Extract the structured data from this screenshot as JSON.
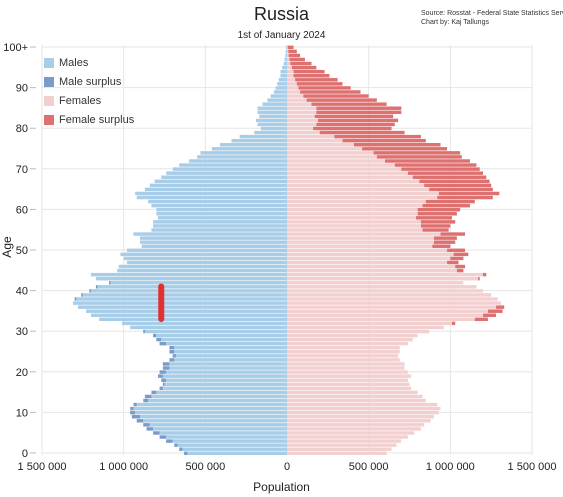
{
  "chart_data": {
    "type": "bar",
    "orientation": "horizontal-pyramid",
    "title": "Russia",
    "subtitle": "1st of January 2024",
    "source_line1": "Source: Rosstat - Federal State Statistics Servi",
    "source_line2": "Chart by: Kaj Tallungs",
    "xlabel": "Population",
    "ylabel": "Age",
    "xlim": [
      -1500000,
      1500000
    ],
    "x_ticks": [
      -1500000,
      -1000000,
      -500000,
      0,
      500000,
      1000000,
      1500000
    ],
    "x_tick_labels": [
      "1 500 000",
      "1 000 000",
      "500 000",
      "0",
      "500 000",
      "1 000 000",
      "1 500 000"
    ],
    "y_ticks": [
      0,
      10,
      20,
      30,
      40,
      50,
      60,
      70,
      80,
      90,
      100
    ],
    "y_tick_labels": [
      "0",
      "10",
      "20",
      "30",
      "40",
      "50",
      "60",
      "70",
      "80",
      "90",
      "100+"
    ],
    "grid": true,
    "legend_position": "top-left",
    "colors": {
      "males": "#a8cde8",
      "male_surplus": "#7a9cc8",
      "females": "#f3d0d0",
      "female_surplus": "#de7070",
      "marker": "#e03030"
    },
    "series": [
      {
        "name": "Males",
        "color": "#a8cde8"
      },
      {
        "name": "Male surplus",
        "color": "#7a9cc8"
      },
      {
        "name": "Females",
        "color": "#f3d0d0"
      },
      {
        "name": "Female surplus",
        "color": "#de7070"
      }
    ],
    "ages": [
      0,
      1,
      2,
      3,
      4,
      5,
      6,
      7,
      8,
      9,
      10,
      11,
      12,
      13,
      14,
      15,
      16,
      17,
      18,
      19,
      20,
      21,
      22,
      23,
      24,
      25,
      26,
      27,
      28,
      29,
      30,
      31,
      32,
      33,
      34,
      35,
      36,
      37,
      38,
      39,
      40,
      41,
      42,
      43,
      44,
      45,
      46,
      47,
      48,
      49,
      50,
      51,
      52,
      53,
      54,
      55,
      56,
      57,
      58,
      59,
      60,
      61,
      62,
      63,
      64,
      65,
      66,
      67,
      68,
      69,
      70,
      71,
      72,
      73,
      74,
      75,
      76,
      77,
      78,
      79,
      80,
      81,
      82,
      83,
      84,
      85,
      86,
      87,
      88,
      89,
      90,
      91,
      92,
      93,
      94,
      95,
      96,
      97,
      98,
      99,
      100
    ],
    "males": [
      630000,
      660000,
      690000,
      740000,
      780000,
      820000,
      860000,
      880000,
      920000,
      950000,
      960000,
      960000,
      940000,
      880000,
      870000,
      830000,
      780000,
      760000,
      770000,
      790000,
      780000,
      760000,
      760000,
      720000,
      700000,
      720000,
      720000,
      780000,
      800000,
      820000,
      880000,
      960000,
      1010000,
      1150000,
      1200000,
      1230000,
      1280000,
      1310000,
      1300000,
      1260000,
      1210000,
      1170000,
      1090000,
      1170000,
      1200000,
      1040000,
      1030000,
      980000,
      1000000,
      1020000,
      980000,
      890000,
      900000,
      900000,
      940000,
      830000,
      820000,
      820000,
      790000,
      800000,
      800000,
      830000,
      850000,
      920000,
      930000,
      870000,
      840000,
      810000,
      770000,
      740000,
      700000,
      660000,
      600000,
      550000,
      530000,
      460000,
      410000,
      340000,
      290000,
      200000,
      160000,
      180000,
      190000,
      170000,
      180000,
      180000,
      150000,
      120000,
      100000,
      80000,
      70000,
      60000,
      50000,
      40000,
      40000,
      30000,
      20000,
      15000,
      10000,
      8000,
      5000
    ],
    "females": [
      610000,
      640000,
      670000,
      700000,
      740000,
      780000,
      820000,
      840000,
      880000,
      900000,
      930000,
      940000,
      920000,
      850000,
      830000,
      800000,
      760000,
      750000,
      740000,
      760000,
      740000,
      720000,
      720000,
      690000,
      680000,
      690000,
      690000,
      740000,
      770000,
      800000,
      870000,
      960000,
      1030000,
      1230000,
      1280000,
      1320000,
      1330000,
      1310000,
      1290000,
      1250000,
      1200000,
      1160000,
      1080000,
      1180000,
      1220000,
      1080000,
      1090000,
      1050000,
      1080000,
      1110000,
      1090000,
      1000000,
      1030000,
      1040000,
      1090000,
      990000,
      1000000,
      1030000,
      1010000,
      1040000,
      1060000,
      1120000,
      1150000,
      1260000,
      1300000,
      1260000,
      1250000,
      1240000,
      1220000,
      1200000,
      1180000,
      1160000,
      1120000,
      1070000,
      1060000,
      980000,
      940000,
      850000,
      820000,
      720000,
      640000,
      660000,
      680000,
      650000,
      700000,
      700000,
      610000,
      550000,
      500000,
      450000,
      390000,
      340000,
      310000,
      260000,
      230000,
      180000,
      150000,
      110000,
      80000,
      60000,
      40000
    ],
    "marker": {
      "x": -770000,
      "age_from": 33,
      "age_to": 41
    }
  }
}
